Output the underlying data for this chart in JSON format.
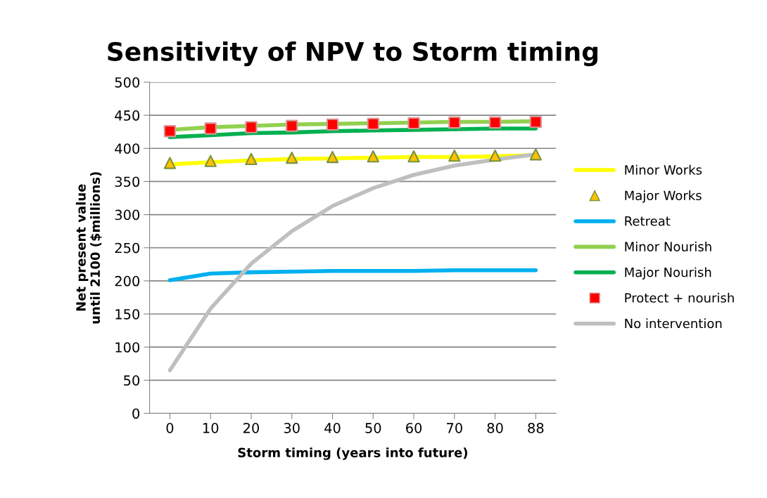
{
  "chart_data": {
    "type": "line",
    "title": "Sensitivity of NPV to Storm timing",
    "xlabel": "Storm timing (years into future)",
    "ylabel": "Net present value\nuntil 2100 ($millions)",
    "categories": [
      "0",
      "10",
      "20",
      "30",
      "40",
      "50",
      "60",
      "70",
      "80",
      "88"
    ],
    "ylim": [
      0,
      500
    ],
    "yticks": [
      0,
      50,
      100,
      150,
      200,
      250,
      300,
      350,
      400,
      450,
      500
    ],
    "grid": "y",
    "legend": "right",
    "series": [
      {
        "name": "Minor Works",
        "color": "#ffff00",
        "marker": "none",
        "values": [
          376,
          379,
          382,
          384,
          385,
          386,
          387,
          387,
          388,
          390
        ]
      },
      {
        "name": "Major Works",
        "type": "scatter",
        "color": "#ffc000",
        "marker": "triangle",
        "values": [
          378,
          381,
          384,
          386,
          387,
          388,
          388,
          389,
          389,
          391
        ]
      },
      {
        "name": "Retreat",
        "color": "#00b0f0",
        "marker": "none",
        "values": [
          201,
          211,
          213,
          214,
          215,
          215,
          215,
          216,
          216,
          216
        ]
      },
      {
        "name": "Minor Nourish",
        "color": "#92d050",
        "marker": "none",
        "values": [
          428,
          432,
          434,
          436,
          437,
          438,
          439,
          440,
          440,
          441
        ]
      },
      {
        "name": "Major Nourish",
        "color": "#00b050",
        "marker": "none",
        "values": [
          417,
          420,
          423,
          424,
          426,
          427,
          428,
          429,
          430,
          430
        ]
      },
      {
        "name": "Protect + nourish",
        "type": "scatter",
        "color": "#ff0000",
        "marker": "square",
        "values": [
          426,
          430,
          432,
          434,
          436,
          437,
          438,
          439,
          439,
          440
        ]
      },
      {
        "name": "No intervention",
        "color": "#bfbfbf",
        "marker": "none",
        "values": [
          65,
          158,
          226,
          275,
          313,
          340,
          360,
          374,
          383,
          391
        ]
      }
    ]
  }
}
